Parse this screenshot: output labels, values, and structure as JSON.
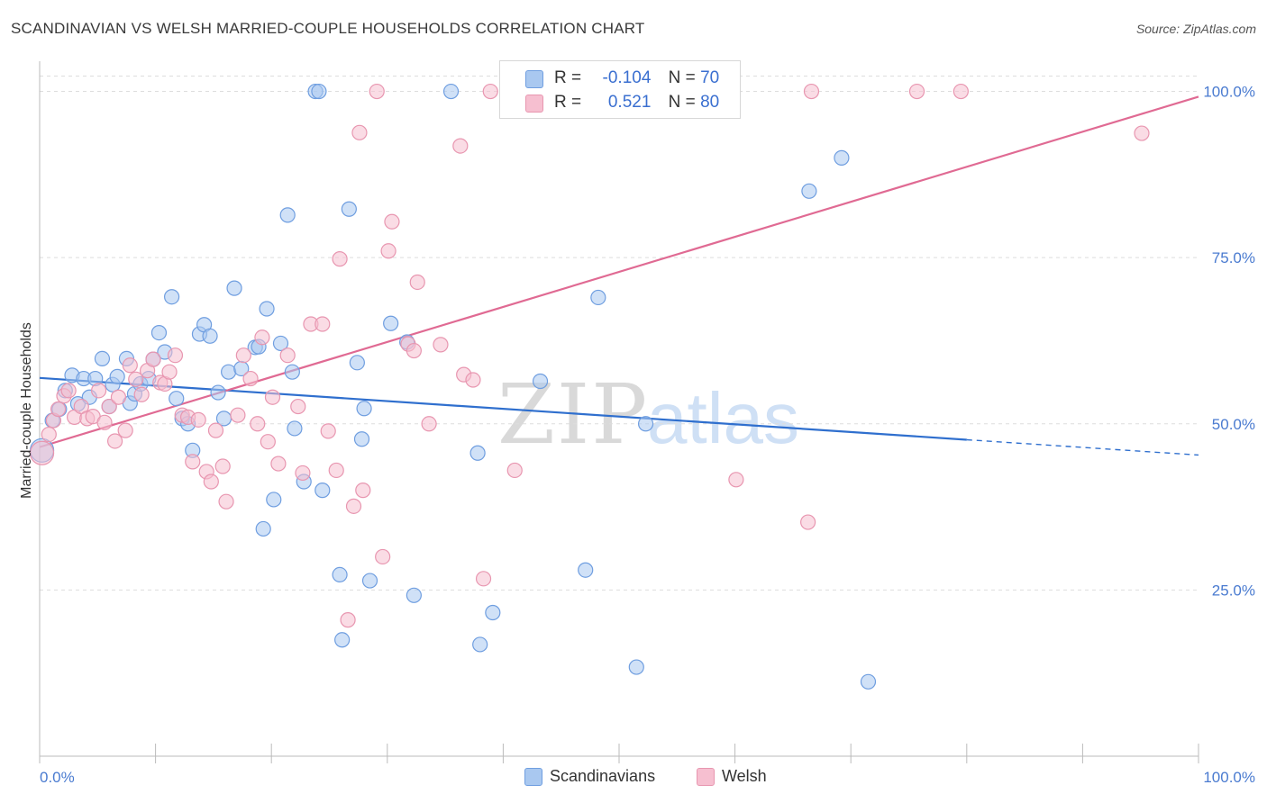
{
  "header": {
    "title": "SCANDINAVIAN VS WELSH MARRIED-COUPLE HOUSEHOLDS CORRELATION CHART",
    "source": "Source: ZipAtlas.com"
  },
  "legend": {
    "rows": [
      {
        "r_label": "R =",
        "r_value": "-0.104",
        "n_label": "N =",
        "n_value": "70"
      },
      {
        "r_label": "R =",
        "r_value": "0.521",
        "n_label": "N =",
        "n_value": "80"
      }
    ]
  },
  "bottom_legend": [
    "Scandinavians",
    "Welsh"
  ],
  "watermark": {
    "part1": "ZIP",
    "part2": "atlas"
  },
  "colors": {
    "blue_fill": "#a9c8f0",
    "blue_stroke": "#6f9ee0",
    "blue_line": "#2f6fce",
    "pink_fill": "#f6bfd0",
    "pink_stroke": "#e896b0",
    "pink_line": "#e06a93",
    "grid": "#dddddd",
    "axis_label": "#4a7bd0"
  },
  "chart_data": {
    "type": "scatter",
    "title": "SCANDINAVIAN VS WELSH MARRIED-COUPLE HOUSEHOLDS CORRELATION CHART",
    "xlabel": "",
    "ylabel": "Married-couple Households",
    "xlim": [
      0,
      100
    ],
    "ylim": [
      0,
      104
    ],
    "x_tick_labels": [
      "0.0%",
      "100.0%"
    ],
    "y_ticks": [
      25,
      50,
      75,
      100
    ],
    "y_tick_labels": [
      "25.0%",
      "50.0%",
      "75.0%",
      "100.0%"
    ],
    "grid": true,
    "legend_placement": "top-center",
    "series": [
      {
        "name": "Scandinavians",
        "color": "#a9c8f0",
        "trend": {
          "x": [
            0,
            80
          ],
          "y": [
            56.9,
            47.6
          ],
          "dashed_to": [
            100,
            45.3
          ]
        },
        "points": [
          [
            0.2,
            46.0
          ],
          [
            1.1,
            50.5
          ],
          [
            1.7,
            52.2
          ],
          [
            2.2,
            55.0
          ],
          [
            2.8,
            57.3
          ],
          [
            3.3,
            53.0
          ],
          [
            3.8,
            56.8
          ],
          [
            4.3,
            54.0
          ],
          [
            4.8,
            56.8
          ],
          [
            5.4,
            59.8
          ],
          [
            6.0,
            52.6
          ],
          [
            6.3,
            55.9
          ],
          [
            6.7,
            57.1
          ],
          [
            7.5,
            59.8
          ],
          [
            7.8,
            53.1
          ],
          [
            8.2,
            54.5
          ],
          [
            8.7,
            56.0
          ],
          [
            9.4,
            56.8
          ],
          [
            9.8,
            59.7
          ],
          [
            10.3,
            63.7
          ],
          [
            10.8,
            60.8
          ],
          [
            11.4,
            69.1
          ],
          [
            11.8,
            53.8
          ],
          [
            12.3,
            50.8
          ],
          [
            12.8,
            50.0
          ],
          [
            13.2,
            46.0
          ],
          [
            13.8,
            63.5
          ],
          [
            14.2,
            64.9
          ],
          [
            14.7,
            63.2
          ],
          [
            15.4,
            54.7
          ],
          [
            15.9,
            50.8
          ],
          [
            16.3,
            57.8
          ],
          [
            16.8,
            70.4
          ],
          [
            17.4,
            58.3
          ],
          [
            18.6,
            61.5
          ],
          [
            18.9,
            61.6
          ],
          [
            19.3,
            34.2
          ],
          [
            19.6,
            67.3
          ],
          [
            20.2,
            38.6
          ],
          [
            20.8,
            62.1
          ],
          [
            21.4,
            81.4
          ],
          [
            21.8,
            57.8
          ],
          [
            22.0,
            49.3
          ],
          [
            22.8,
            41.3
          ],
          [
            23.8,
            100.0
          ],
          [
            24.1,
            100.0
          ],
          [
            24.4,
            40.0
          ],
          [
            25.9,
            27.3
          ],
          [
            26.1,
            17.5
          ],
          [
            26.7,
            82.3
          ],
          [
            27.4,
            59.2
          ],
          [
            27.8,
            47.7
          ],
          [
            28.0,
            52.3
          ],
          [
            28.5,
            26.4
          ],
          [
            30.3,
            65.1
          ],
          [
            31.7,
            62.3
          ],
          [
            32.3,
            24.2
          ],
          [
            35.5,
            100.0
          ],
          [
            37.8,
            45.6
          ],
          [
            38.0,
            16.8
          ],
          [
            39.1,
            21.6
          ],
          [
            43.2,
            56.4
          ],
          [
            47.1,
            28.0
          ],
          [
            48.2,
            69.0
          ],
          [
            51.5,
            13.4
          ],
          [
            52.3,
            50.0
          ],
          [
            66.4,
            85.0
          ],
          [
            69.2,
            90.0
          ],
          [
            71.5,
            11.2
          ]
        ]
      },
      {
        "name": "Welsh",
        "color": "#f6bfd0",
        "trend": {
          "x": [
            0,
            100
          ],
          "y": [
            46.5,
            99.2
          ]
        },
        "points": [
          [
            0.2,
            45.6
          ],
          [
            0.8,
            48.4
          ],
          [
            1.2,
            50.5
          ],
          [
            1.6,
            52.2
          ],
          [
            2.1,
            54.2
          ],
          [
            2.5,
            55.0
          ],
          [
            3.0,
            51.0
          ],
          [
            3.6,
            52.6
          ],
          [
            4.1,
            50.8
          ],
          [
            4.6,
            51.1
          ],
          [
            5.1,
            55.0
          ],
          [
            5.6,
            50.2
          ],
          [
            6.0,
            52.6
          ],
          [
            6.5,
            47.4
          ],
          [
            6.8,
            54.0
          ],
          [
            7.4,
            49.0
          ],
          [
            7.8,
            58.8
          ],
          [
            8.3,
            56.7
          ],
          [
            8.8,
            54.4
          ],
          [
            9.3,
            58.0
          ],
          [
            9.8,
            59.7
          ],
          [
            10.4,
            56.2
          ],
          [
            10.8,
            56.0
          ],
          [
            11.2,
            57.8
          ],
          [
            11.7,
            60.3
          ],
          [
            12.3,
            51.3
          ],
          [
            12.8,
            51.0
          ],
          [
            13.2,
            44.3
          ],
          [
            13.7,
            50.6
          ],
          [
            14.4,
            42.8
          ],
          [
            14.8,
            41.3
          ],
          [
            15.2,
            49.0
          ],
          [
            15.8,
            43.6
          ],
          [
            16.1,
            38.3
          ],
          [
            17.1,
            51.3
          ],
          [
            17.6,
            60.3
          ],
          [
            18.2,
            56.8
          ],
          [
            18.8,
            50.0
          ],
          [
            19.2,
            63.0
          ],
          [
            19.7,
            47.3
          ],
          [
            20.1,
            54.0
          ],
          [
            20.6,
            44.0
          ],
          [
            21.4,
            60.3
          ],
          [
            22.3,
            52.6
          ],
          [
            22.7,
            42.6
          ],
          [
            23.4,
            65.0
          ],
          [
            24.4,
            65.0
          ],
          [
            24.9,
            48.9
          ],
          [
            25.6,
            43.0
          ],
          [
            25.9,
            74.8
          ],
          [
            26.6,
            20.5
          ],
          [
            27.1,
            37.6
          ],
          [
            27.6,
            93.8
          ],
          [
            27.9,
            40.0
          ],
          [
            29.1,
            100.0
          ],
          [
            29.6,
            30.0
          ],
          [
            30.1,
            76.0
          ],
          [
            30.4,
            80.4
          ],
          [
            31.8,
            62.0
          ],
          [
            32.3,
            61.0
          ],
          [
            32.6,
            71.3
          ],
          [
            33.6,
            50.0
          ],
          [
            34.6,
            61.9
          ],
          [
            36.3,
            91.8
          ],
          [
            36.6,
            57.4
          ],
          [
            37.4,
            56.6
          ],
          [
            38.3,
            26.7
          ],
          [
            38.9,
            100.0
          ],
          [
            41.0,
            43.0
          ],
          [
            45.8,
            100.0
          ],
          [
            48.0,
            100.0
          ],
          [
            54.1,
            100.0
          ],
          [
            60.1,
            41.6
          ],
          [
            66.3,
            35.2
          ],
          [
            66.6,
            100.0
          ],
          [
            75.7,
            100.0
          ],
          [
            79.5,
            100.0
          ],
          [
            95.1,
            93.7
          ]
        ]
      }
    ]
  }
}
